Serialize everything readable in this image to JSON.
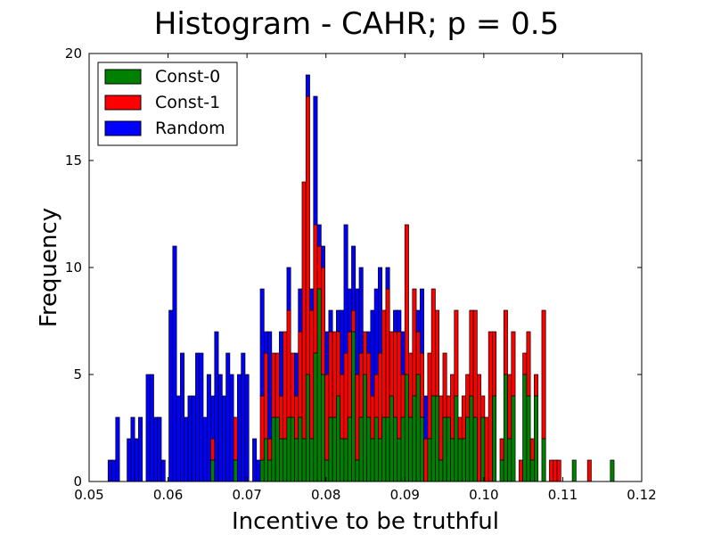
{
  "chart_data": {
    "type": "bar",
    "stacked": true,
    "title": "Histogram - CAHR;  p = 0.5",
    "xlabel": "Incentive to be truthful",
    "ylabel": "Frequency",
    "xlim": [
      0.05,
      0.12
    ],
    "ylim": [
      0,
      20
    ],
    "xticks": [
      0.05,
      0.06,
      0.07,
      0.08,
      0.09,
      0.1,
      0.11,
      0.12
    ],
    "xtick_labels": [
      "0.05",
      "0.06",
      "0.07",
      "0.08",
      "0.09",
      "0.10",
      "0.11",
      "0.12"
    ],
    "yticks": [
      0,
      5,
      10,
      15,
      20
    ],
    "ytick_labels": [
      "0",
      "5",
      "10",
      "15",
      "20"
    ],
    "bin_start": 0.0524,
    "bin_width": 0.000482,
    "legend_position": "top-left",
    "series": [
      {
        "name": "Const-0",
        "color": "#008000",
        "values": [
          0,
          0,
          0,
          0,
          0,
          0,
          0,
          0,
          0,
          0,
          0,
          0,
          0,
          0,
          0,
          0,
          0,
          0,
          0,
          0,
          0,
          0,
          0,
          0,
          0,
          0,
          0,
          1,
          0,
          0,
          0,
          0,
          0,
          1,
          0,
          0,
          0,
          0,
          0,
          0,
          1,
          2,
          1,
          3,
          3,
          2,
          2,
          3,
          3,
          2,
          3,
          2,
          5,
          2,
          6,
          9,
          5,
          1,
          3,
          3,
          4,
          2,
          2,
          3,
          7,
          1,
          3,
          5,
          3,
          2,
          3,
          2,
          3,
          3,
          4,
          3,
          2,
          3,
          5,
          3,
          4,
          5,
          3,
          0,
          2,
          4,
          4,
          1,
          3,
          3,
          2,
          4,
          2,
          2,
          3,
          4,
          3,
          0,
          3,
          0,
          0,
          4,
          0,
          1,
          5,
          2,
          4,
          0,
          0,
          5,
          4,
          1,
          4,
          0,
          2,
          0,
          0,
          0,
          0,
          0,
          0,
          0,
          1,
          0,
          0,
          0,
          0,
          0,
          0,
          0,
          0,
          0,
          1,
          0,
          0
        ],
        "visible_as": "bottom layer"
      },
      {
        "name": "Const-1",
        "color": "#ff0000",
        "values": [
          0,
          0,
          0,
          0,
          0,
          0,
          0,
          0,
          0,
          0,
          0,
          0,
          0,
          0,
          0,
          0,
          0,
          0,
          0,
          0,
          0,
          0,
          0,
          0,
          0,
          0,
          0,
          1,
          0,
          0,
          0,
          0,
          0,
          2,
          0,
          0,
          0,
          0,
          0,
          0,
          3,
          4,
          1,
          3,
          3,
          2,
          5,
          5,
          3,
          2,
          4,
          12,
          13,
          6,
          6,
          2,
          5,
          4,
          4,
          4,
          3,
          3,
          4,
          4,
          1,
          4,
          3,
          2,
          3,
          2,
          2,
          4,
          5,
          6,
          3,
          4,
          5,
          2,
          7,
          3,
          5,
          2,
          3,
          2,
          4,
          5,
          4,
          3,
          3,
          1,
          3,
          4,
          1,
          2,
          2,
          4,
          5,
          5,
          1,
          3,
          7,
          3,
          0,
          1,
          3,
          3,
          3,
          0,
          1,
          1,
          3,
          1,
          1,
          0,
          6,
          0,
          1,
          1,
          1,
          0,
          0,
          0,
          0,
          0,
          0,
          0,
          1,
          0,
          0,
          0,
          0,
          0,
          0,
          0,
          0
        ],
        "visible_as": "middle layer"
      },
      {
        "name": "Random",
        "color": "#0000ff",
        "values": [
          1,
          1,
          3,
          0,
          0,
          2,
          3,
          2,
          3,
          0,
          5,
          5,
          3,
          3,
          1,
          0,
          8,
          11,
          4,
          6,
          3,
          4,
          4,
          6,
          6,
          3,
          5,
          2,
          7,
          5,
          4,
          6,
          5,
          0,
          5,
          6,
          5,
          0,
          2,
          1,
          5,
          1,
          5,
          0,
          0,
          3,
          0,
          2,
          0,
          2,
          2,
          0,
          1,
          1,
          6,
          1,
          1,
          2,
          1,
          0,
          1,
          3,
          6,
          2,
          3,
          4,
          4,
          0,
          1,
          4,
          4,
          4,
          0,
          1,
          0,
          1,
          1,
          2,
          0,
          0,
          0,
          1,
          3,
          2,
          0,
          0,
          0,
          0,
          0,
          0,
          0,
          0,
          0,
          0,
          0,
          0,
          0,
          0,
          0,
          0,
          0,
          0,
          0,
          0,
          0,
          0,
          0,
          0,
          0,
          0,
          0,
          0,
          0,
          0,
          0,
          0,
          0,
          0,
          0,
          0,
          0,
          0,
          0,
          0,
          0,
          0,
          0,
          0,
          0,
          0,
          0,
          0,
          0,
          0,
          0,
          0
        ],
        "visible_as": "top layer"
      }
    ]
  }
}
